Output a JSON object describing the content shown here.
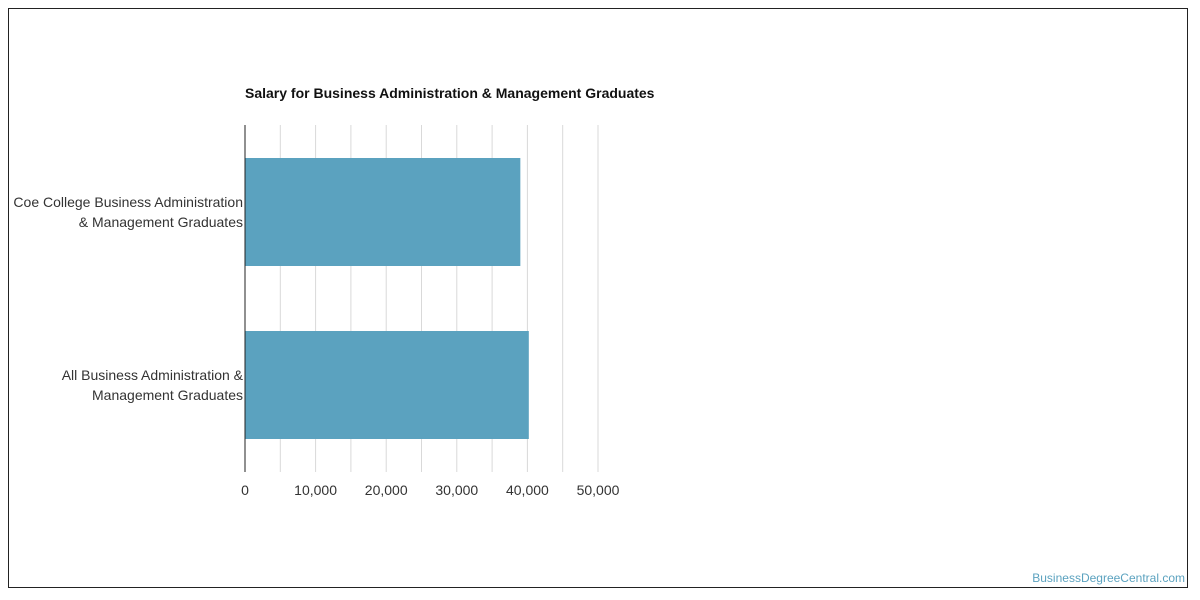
{
  "chart_data": {
    "type": "bar",
    "orientation": "horizontal",
    "title": "Salary for Business Administration & Management Graduates",
    "categories": [
      "Coe College Business Administration & Management Graduates",
      "All Business Administration & Management Graduates"
    ],
    "values": [
      39000,
      40200
    ],
    "xlabel": "",
    "ylabel": "",
    "xlim": [
      0,
      60000
    ],
    "xticks": [
      0,
      10000,
      20000,
      30000,
      40000,
      50000
    ],
    "xtick_labels": [
      "0",
      "10,000",
      "20,000",
      "30,000",
      "40,000",
      "50,000"
    ],
    "grid": true,
    "legend": "none",
    "bar_color": "#5ba2bf"
  },
  "watermark": "BusinessDegreeCentral.com"
}
